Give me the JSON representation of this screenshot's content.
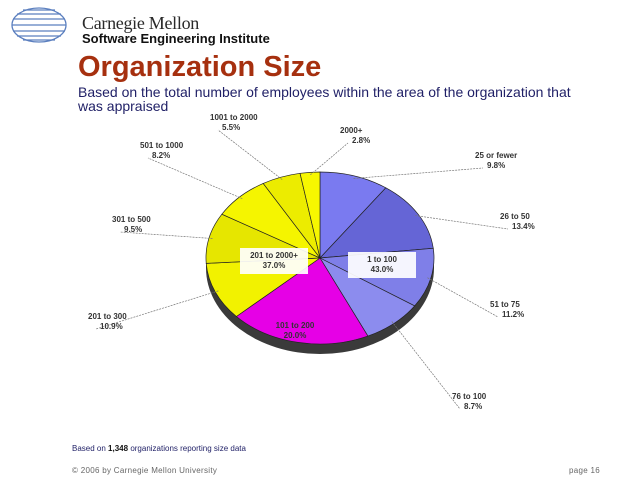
{
  "header": {
    "logo_line1": "Carnegie Mellon",
    "logo_line2": "Software Engineering Institute",
    "logo_icon": "cmu-globe-logo"
  },
  "slide": {
    "title": "Organization Size",
    "subtitle": "Based on the total number of employees within the area of the organization that was appraised"
  },
  "chart_data": {
    "type": "pie",
    "slices": [
      {
        "label": "25 or fewer",
        "value": 9.8,
        "color": "#7a7af0"
      },
      {
        "label": "26 to 50",
        "value": 13.4,
        "color": "#6565d6"
      },
      {
        "label": "51 to 75",
        "value": 11.2,
        "color": "#7f7fe8"
      },
      {
        "label": "76 to 100",
        "value": 8.7,
        "color": "#8c8cee"
      },
      {
        "label": "101 to 200",
        "value": 20.0,
        "color": "#e600e6"
      },
      {
        "label": "201 to 300",
        "value": 10.9,
        "color": "#f2f200"
      },
      {
        "label": "301 to 500",
        "value": 9.5,
        "color": "#e6e600"
      },
      {
        "label": "501 to 1000",
        "value": 8.2,
        "color": "#f5f500"
      },
      {
        "label": "1001 to 2000",
        "value": 5.5,
        "color": "#ecec00"
      },
      {
        "label": "2000+",
        "value": 2.8,
        "color": "#f7f700"
      }
    ],
    "groups": [
      {
        "label": "1 to 100",
        "value": 43.0
      },
      {
        "label": "101 to 200",
        "value": 20.0
      },
      {
        "label": "201 to 2000+",
        "value": 37.0
      }
    ]
  },
  "footer": {
    "footnote_prefix": "Based on",
    "footnote_count": "1,348",
    "footnote_suffix": "organizations reporting size data",
    "copyright": "© 2006 by Carnegie Mellon University",
    "page": "page 16"
  }
}
